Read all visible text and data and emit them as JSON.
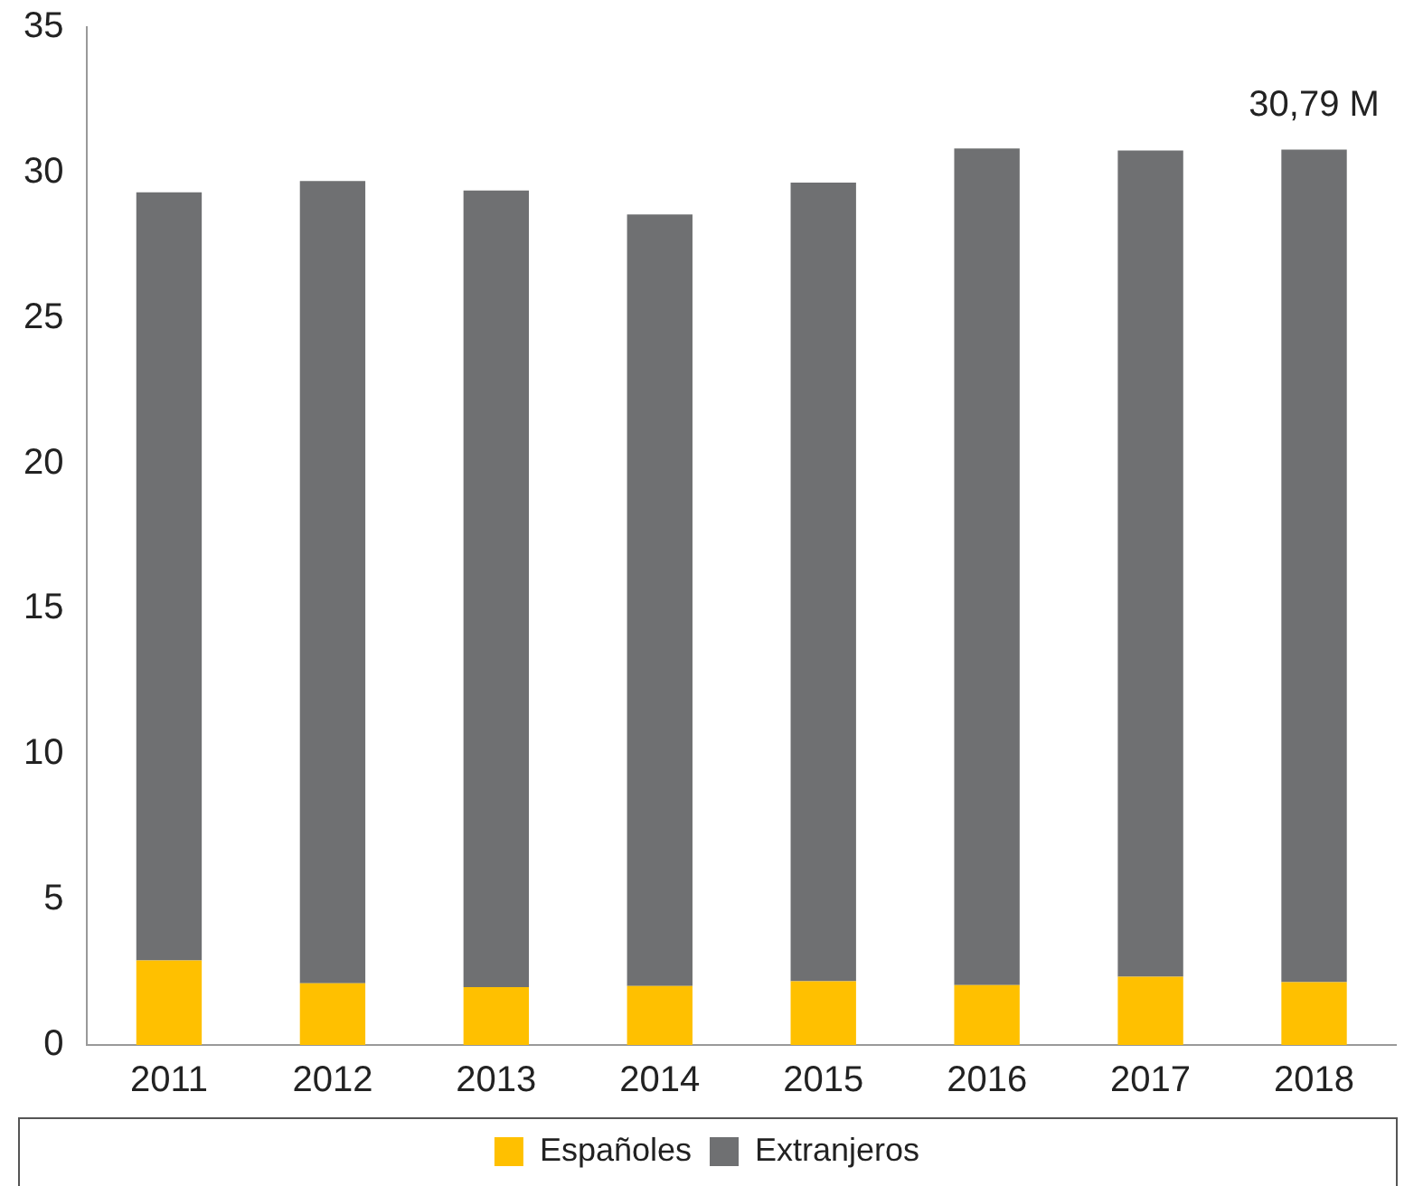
{
  "chart_data": {
    "type": "bar",
    "stacked": true,
    "categories": [
      "2011",
      "2012",
      "2013",
      "2014",
      "2015",
      "2016",
      "2017",
      "2018"
    ],
    "series": [
      {
        "name": "Españoles",
        "color": "#ffc000",
        "values": [
          2.91,
          2.12,
          1.99,
          2.03,
          2.19,
          2.06,
          2.35,
          2.16
        ]
      },
      {
        "name": "Extranjeros",
        "color": "#6f7072",
        "values": [
          26.41,
          27.59,
          27.39,
          26.53,
          27.46,
          28.77,
          28.41,
          28.63
        ]
      }
    ],
    "ylim": [
      0,
      35
    ],
    "yticks": [
      0,
      5,
      10,
      15,
      20,
      25,
      30,
      35
    ],
    "grid": false,
    "legend": "bottom",
    "annotations": [
      {
        "text": "30,79 M",
        "x": "2018",
        "y": 30.79
      }
    ]
  }
}
